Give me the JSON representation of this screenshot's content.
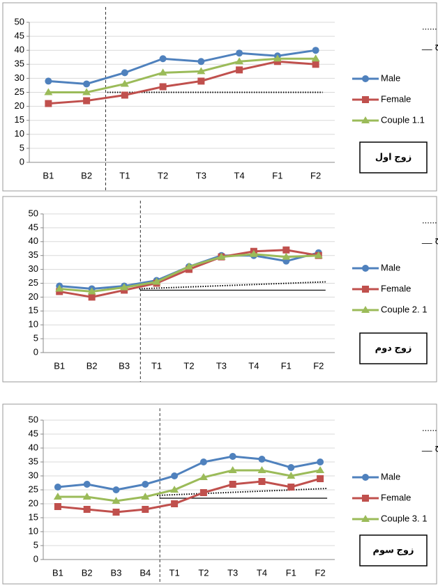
{
  "chart_data": [
    {
      "type": "line",
      "panel_label": "زوج اول",
      "trend_label": "خط روند ......",
      "level_label": "خط سطح __",
      "categories": [
        "B1",
        "B2",
        "T1",
        "T2",
        "T3",
        "T4",
        "F1",
        "F2"
      ],
      "baseline_count": 2,
      "ylim": [
        0,
        50
      ],
      "yticks": [
        0,
        5,
        10,
        15,
        20,
        25,
        30,
        35,
        40,
        45,
        50
      ],
      "grid": true,
      "trend": [
        25,
        25
      ],
      "series": [
        {
          "name": "Male",
          "color": "#4f81bd",
          "marker": "circle",
          "values": [
            29,
            28,
            32,
            37,
            36,
            39,
            38,
            40
          ]
        },
        {
          "name": "Female",
          "color": "#c0504d",
          "marker": "square",
          "values": [
            21,
            22,
            24,
            27,
            29,
            33,
            36,
            35
          ]
        },
        {
          "name": "Couple 1.1",
          "color": "#9bbb59",
          "marker": "triangle",
          "values": [
            25,
            25,
            28,
            32,
            32.5,
            36,
            37,
            37
          ]
        }
      ]
    },
    {
      "type": "line",
      "panel_label": "زوج دوم",
      "trend_label": "خط روند ......",
      "level_label": "خط سطح __",
      "categories": [
        "B1",
        "B2",
        "B3",
        "T1",
        "T2",
        "T3",
        "T4",
        "F1",
        "F2"
      ],
      "baseline_count": 3,
      "ylim": [
        0,
        50
      ],
      "yticks": [
        0,
        5,
        10,
        15,
        20,
        25,
        30,
        35,
        40,
        45,
        50
      ],
      "grid": true,
      "trend": [
        23,
        25.5
      ],
      "level": 22.5,
      "series": [
        {
          "name": "Male",
          "color": "#4f81bd",
          "marker": "circle",
          "values": [
            24,
            23,
            24,
            26,
            31,
            35,
            35,
            33,
            36
          ]
        },
        {
          "name": "Female",
          "color": "#c0504d",
          "marker": "square",
          "values": [
            22,
            20,
            22.5,
            25,
            30,
            34.5,
            36.5,
            37,
            35
          ]
        },
        {
          "name": "Couple 2. 1",
          "color": "#9bbb59",
          "marker": "triangle",
          "values": [
            23,
            22,
            23.5,
            25.5,
            31,
            34.5,
            35.5,
            34.5,
            35
          ]
        }
      ]
    },
    {
      "type": "line",
      "panel_label": "زوج سوم",
      "trend_label": "خط روند ......",
      "level_label": "خط سطح __",
      "categories": [
        "B1",
        "B2",
        "B3",
        "B4",
        "T1",
        "T2",
        "T3",
        "T4",
        "F1",
        "F2"
      ],
      "baseline_count": 4,
      "ylim": [
        0,
        50
      ],
      "yticks": [
        0,
        5,
        10,
        15,
        20,
        25,
        30,
        35,
        40,
        45,
        50
      ],
      "grid": true,
      "trend": [
        23,
        25.5
      ],
      "level": 22,
      "series": [
        {
          "name": "Male",
          "color": "#4f81bd",
          "marker": "circle",
          "values": [
            26,
            27,
            25,
            27,
            30,
            35,
            37,
            36,
            33,
            35
          ]
        },
        {
          "name": "Female",
          "color": "#c0504d",
          "marker": "square",
          "values": [
            19,
            18,
            17,
            18,
            20,
            24,
            27,
            28,
            26,
            29
          ]
        },
        {
          "name": "Couple 3. 1",
          "color": "#9bbb59",
          "marker": "triangle",
          "values": [
            22.5,
            22.5,
            21,
            22.5,
            25,
            29.5,
            32,
            32,
            30,
            32
          ]
        }
      ]
    }
  ]
}
